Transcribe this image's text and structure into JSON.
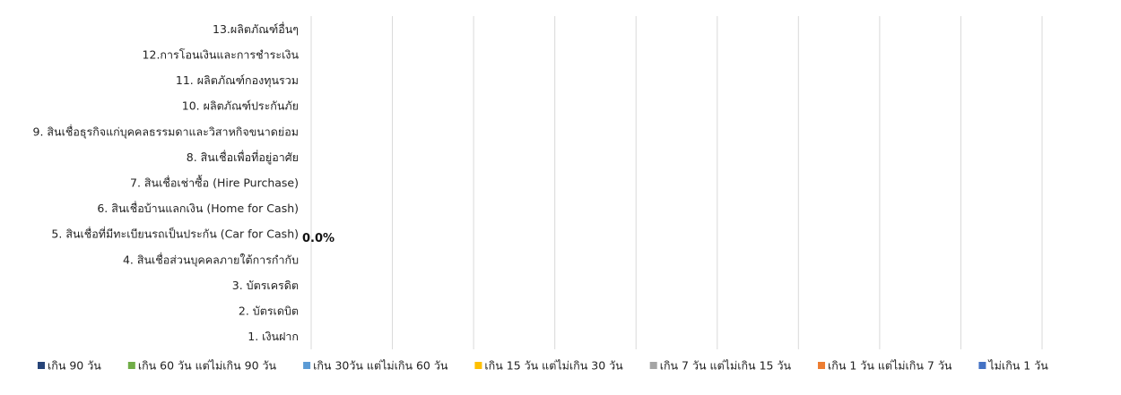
{
  "chart_data": {
    "type": "bar",
    "orientation": "horizontal",
    "stacked": true,
    "categories": [
      "1. เงินฝาก",
      "2. บัตรเดบิต",
      "3. บัตรเครดิต",
      "4. สินเชื่อส่วนบุคคลภายใต้การกำกับ",
      "5. สินเชื่อที่มีทะเบียนรถเป็นประกัน (Car for Cash)",
      "6. สินเชื่อบ้านแลกเงิน (Home for Cash)",
      "7. สินเชื่อเช่าซื้อ (Hire Purchase)",
      "8. สินเชื่อเพื่อที่อยู่อาศัย",
      "9. สินเชื่อธุรกิจแก่บุคคลธรรมดาและวิสาหกิจขนาดย่อม",
      "10. ผลิตภัณฑ์ประกันภัย",
      "11. ผลิตภัณฑ์กองทุนรวม",
      "12.การโอนเงินและการชำระเงิน",
      "13.ผลิตภัณฑ์อื่นๆ"
    ],
    "series": [
      {
        "name": "ไม่เกิน 1 วัน",
        "color": "#4472C4",
        "values": [
          null,
          null,
          null,
          null,
          0,
          null,
          null,
          null,
          null,
          null,
          null,
          null,
          null
        ]
      },
      {
        "name": "เกิน 1 วัน แต่ไม่เกิน 7 วัน",
        "color": "#ED7D31",
        "values": [
          null,
          null,
          null,
          null,
          0,
          null,
          null,
          null,
          null,
          null,
          null,
          null,
          null
        ]
      },
      {
        "name": "เกิน 7 วัน แต่ไม่เกิน 15 วัน",
        "color": "#A5A5A5",
        "values": [
          null,
          null,
          null,
          null,
          0,
          null,
          null,
          null,
          null,
          null,
          null,
          null,
          null
        ]
      },
      {
        "name": "เกิน 15 วัน แต่ไม่เกิน 30 วัน",
        "color": "#FFC000",
        "values": [
          null,
          null,
          null,
          null,
          0,
          null,
          null,
          null,
          null,
          null,
          null,
          null,
          null
        ]
      },
      {
        "name": "เกิน 30วัน แต่ไม่เกิน 60 วัน",
        "color": "#5B9BD5",
        "values": [
          null,
          null,
          null,
          null,
          0,
          null,
          null,
          null,
          null,
          null,
          null,
          null,
          null
        ]
      },
      {
        "name": "เกิน 60 วัน แต่ไม่เกิน 90 วัน",
        "color": "#70AD47",
        "values": [
          null,
          null,
          null,
          null,
          0,
          null,
          null,
          null,
          null,
          null,
          null,
          null,
          null
        ]
      },
      {
        "name": "เกิน 90 วัน",
        "color": "#264478",
        "values": [
          null,
          null,
          null,
          null,
          0,
          null,
          null,
          null,
          null,
          null,
          null,
          null,
          null
        ]
      }
    ],
    "data_labels": [
      {
        "category_index": 4,
        "text": "0.0%"
      }
    ],
    "legend_order": [
      "เกิน 90 วัน",
      "เกิน 60 วัน แต่ไม่เกิน 90 วัน",
      "เกิน 30วัน แต่ไม่เกิน 60 วัน",
      "เกิน 15 วัน แต่ไม่เกิน 30 วัน",
      "เกิน 7 วัน แต่ไม่เกิน 15 วัน",
      "เกิน 1 วัน แต่ไม่เกิน 7 วัน",
      "ไม่เกิน 1 วัน"
    ],
    "xlim": [
      0,
      1
    ],
    "x_axis_labels_shown": false,
    "grid": true,
    "legend_position": "bottom",
    "gridline_color": "#D9D9D9"
  }
}
